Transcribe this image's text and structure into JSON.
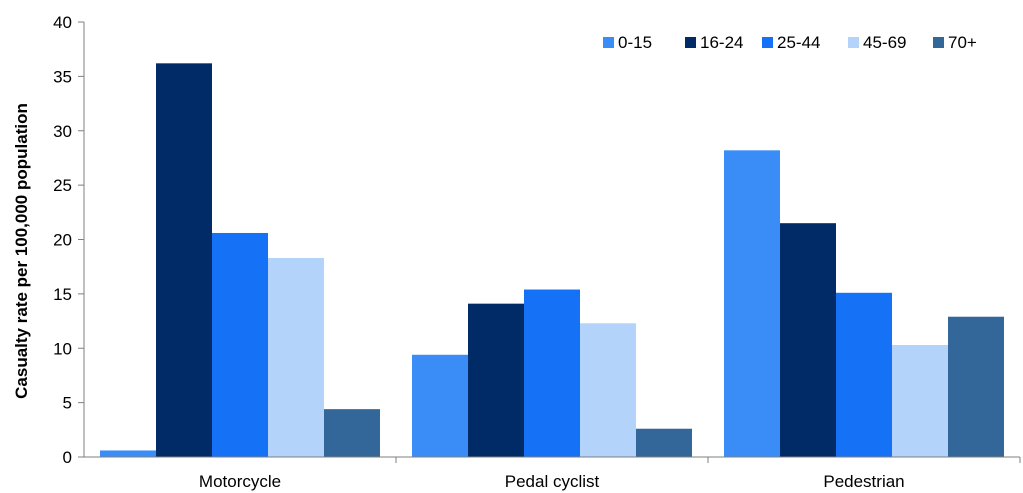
{
  "chart_data": {
    "type": "bar",
    "title": "",
    "xlabel": "",
    "ylabel": "Casualty rate per 100,000 population",
    "ylim": [
      0,
      40
    ],
    "yticks": [
      0,
      5,
      10,
      15,
      20,
      25,
      30,
      35,
      40
    ],
    "grid": false,
    "legend_position": "top-right",
    "categories": [
      "Motorcycle",
      "Pedal cyclist",
      "Pedestrian"
    ],
    "series": [
      {
        "name": "0-15",
        "color": "#3a8cf7",
        "values": [
          0.6,
          9.4,
          28.2
        ]
      },
      {
        "name": "16-24",
        "color": "#002b66",
        "values": [
          36.2,
          14.1,
          21.5
        ]
      },
      {
        "name": "25-44",
        "color": "#1572f7",
        "values": [
          20.6,
          15.4,
          15.1
        ]
      },
      {
        "name": "45-69",
        "color": "#b3d3fb",
        "values": [
          18.3,
          12.3,
          10.3
        ]
      },
      {
        "name": "70+",
        "color": "#336699",
        "values": [
          4.4,
          2.6,
          12.9
        ]
      }
    ]
  }
}
